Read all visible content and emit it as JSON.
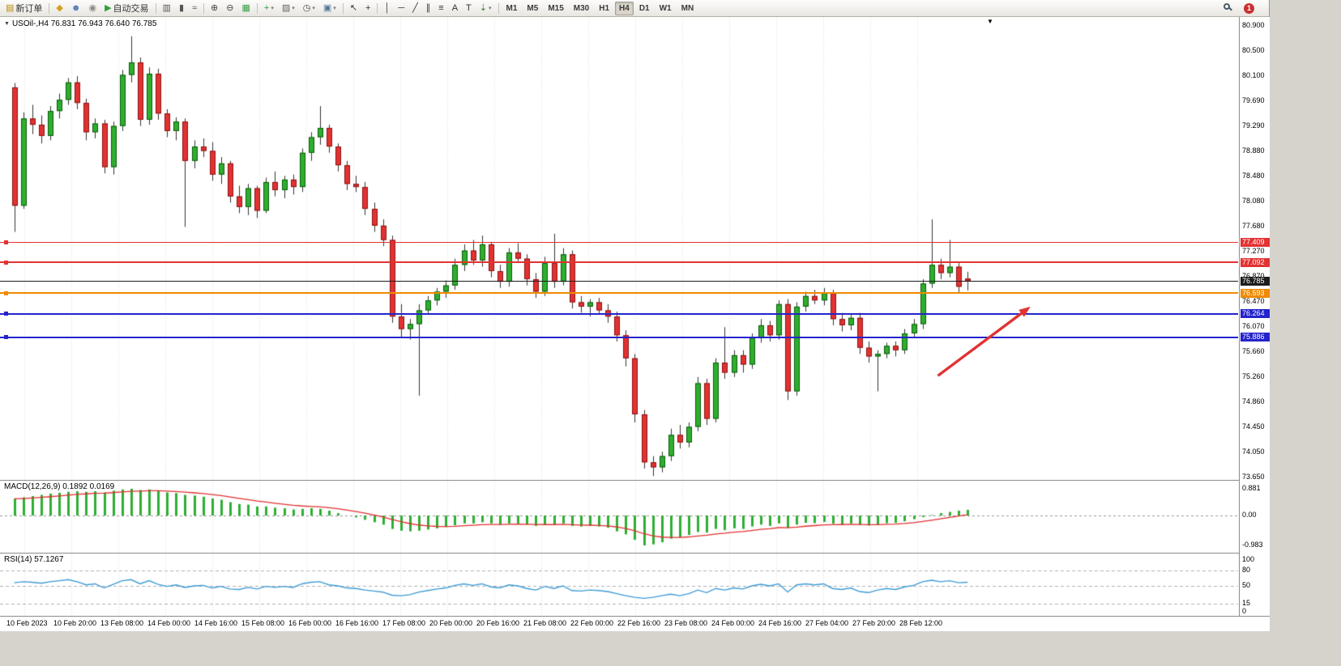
{
  "icons": {
    "dropdown": "▾",
    "collapse": "▼",
    "shift": "▼"
  },
  "toolbar": {
    "groups": [
      [
        {
          "name": "new-order-button",
          "glyph": "▤",
          "glyph_color": "#b8860b",
          "label": "新订单"
        }
      ],
      [
        {
          "name": "indicators-button",
          "glyph": "◆",
          "glyph_color": "#d4a017"
        },
        {
          "name": "accounts-button",
          "glyph": "☻",
          "glyph_color": "#4a7ab5"
        },
        {
          "name": "sound-button",
          "glyph": "◉",
          "glyph_color": "#888888"
        },
        {
          "name": "autotrading-button",
          "glyph": "▶",
          "glyph_color": "#2e9e3f",
          "label": "自动交易"
        }
      ],
      [
        {
          "name": "bar-chart-button",
          "glyph": "▥",
          "glyph_color": "#555555"
        },
        {
          "name": "candlestick-chart-button",
          "glyph": "▮",
          "glyph_color": "#555555"
        },
        {
          "name": "line-chart-button",
          "glyph": "≈",
          "glyph_color": "#555555"
        }
      ],
      [
        {
          "name": "zoom-in-button",
          "glyph": "⊕",
          "glyph_color": "#444444"
        },
        {
          "name": "zoom-out-button",
          "glyph": "⊖",
          "glyph_color": "#444444"
        },
        {
          "name": "tile-windows-button",
          "glyph": "▦",
          "glyph_color": "#3a9e4a"
        }
      ],
      [
        {
          "name": "new-chart-button",
          "glyph": "+",
          "glyph_color": "#2e9e3f",
          "dropdown": true
        },
        {
          "name": "profiles-button",
          "glyph": "▨",
          "glyph_color": "#666666",
          "dropdown": true
        },
        {
          "name": "period-menu-button",
          "glyph": "◷",
          "glyph_color": "#444444",
          "dropdown": true
        },
        {
          "name": "snapshot-button",
          "glyph": "▣",
          "glyph_color": "#557799",
          "dropdown": true
        }
      ],
      [
        {
          "name": "cursor-button",
          "glyph": "↖",
          "glyph_color": "#333333"
        },
        {
          "name": "crosshair-button",
          "glyph": "+",
          "glyph_color": "#333333"
        }
      ],
      [
        {
          "name": "vertical-line-button",
          "glyph": "│",
          "glyph_color": "#333333"
        },
        {
          "name": "horizontal-line-button",
          "glyph": "─",
          "glyph_color": "#333333"
        },
        {
          "name": "trendline-button",
          "glyph": "╱",
          "glyph_color": "#333333"
        },
        {
          "name": "channel-button",
          "glyph": "∥",
          "glyph_color": "#333333"
        },
        {
          "name": "fibonacci-button",
          "glyph": "≡",
          "glyph_color": "#333333"
        },
        {
          "name": "text-button",
          "glyph": "A",
          "glyph_color": "#333333"
        },
        {
          "name": "label-button",
          "glyph": "T",
          "glyph_color": "#333333"
        },
        {
          "name": "arrows-button",
          "glyph": "⇣",
          "glyph_color": "#2e7d32",
          "dropdown": true
        }
      ]
    ],
    "timeframes": [
      "M1",
      "M5",
      "M15",
      "M30",
      "H1",
      "H4",
      "D1",
      "W1",
      "MN"
    ],
    "active_timeframe": "H4",
    "badge": "1"
  },
  "chart": {
    "title": "USOil-,H4 76.831 76.943 76.640 76.785",
    "symbol": "USOil-",
    "period": "H4",
    "ohlc_current": {
      "open": 76.831,
      "high": 76.943,
      "low": 76.64,
      "close": 76.785
    }
  },
  "price_axis": {
    "ticks": [
      "80.900",
      "80.500",
      "80.100",
      "79.690",
      "79.290",
      "78.880",
      "78.480",
      "78.080",
      "77.680",
      "77.270",
      "76.870",
      "76.470",
      "76.070",
      "75.660",
      "75.260",
      "74.860",
      "74.450",
      "74.050",
      "73.650"
    ],
    "markers": [
      {
        "label": "77.409",
        "value": 77.409,
        "color": "#e23232",
        "line_width": 1.3,
        "handle": true
      },
      {
        "label": "77.092",
        "value": 77.092,
        "color": "#e23232",
        "line_width": 1.3,
        "handle": true
      },
      {
        "label": "76.785",
        "value": 76.785,
        "color": "#1c1c1c",
        "line_width": 1,
        "handle": false
      },
      {
        "label": "76.593",
        "value": 76.593,
        "color": "#f08a00",
        "line_width": 2,
        "handle": true
      },
      {
        "label": "76.264",
        "value": 76.264,
        "color": "#2424cc",
        "line_width": 2,
        "handle": true
      },
      {
        "label": "75.886",
        "value": 75.886,
        "color": "#2424cc",
        "line_width": 2,
        "handle": true
      }
    ]
  },
  "chart_data": {
    "type": "candlestick",
    "symbol": "USOil-",
    "timeframe": "H4",
    "ylim": [
      73.45,
      81.05
    ],
    "time_labels": [
      "10 Feb 2023",
      "10 Feb 20:00",
      "13 Feb 08:00",
      "14 Feb 00:00",
      "14 Feb 16:00",
      "15 Feb 08:00",
      "16 Feb 00:00",
      "16 Feb 16:00",
      "17 Feb 08:00",
      "20 Feb 00:00",
      "20 Feb 16:00",
      "21 Feb 08:00",
      "22 Feb 00:00",
      "22 Feb 16:00",
      "23 Feb 08:00",
      "24 Feb 00:00",
      "24 Feb 16:00",
      "27 Feb 04:00",
      "27 Feb 20:00",
      "28 Feb 12:00"
    ],
    "candles": [
      [
        79.9,
        79.97,
        77.58,
        78.0
      ],
      [
        78.0,
        79.5,
        77.95,
        79.4
      ],
      [
        79.4,
        79.62,
        79.15,
        79.3
      ],
      [
        79.3,
        79.45,
        79.0,
        79.12
      ],
      [
        79.12,
        79.6,
        79.05,
        79.52
      ],
      [
        79.52,
        79.8,
        79.4,
        79.7
      ],
      [
        79.7,
        80.05,
        79.62,
        79.98
      ],
      [
        79.98,
        80.08,
        79.55,
        79.65
      ],
      [
        79.65,
        79.72,
        79.05,
        79.18
      ],
      [
        79.18,
        79.4,
        79.08,
        79.32
      ],
      [
        79.32,
        79.38,
        78.52,
        78.62
      ],
      [
        78.62,
        79.35,
        78.5,
        79.28
      ],
      [
        79.28,
        80.18,
        79.2,
        80.1
      ],
      [
        80.1,
        80.72,
        79.98,
        80.3
      ],
      [
        80.3,
        80.38,
        79.28,
        79.38
      ],
      [
        79.38,
        80.22,
        79.3,
        80.12
      ],
      [
        80.12,
        80.2,
        79.38,
        79.48
      ],
      [
        79.48,
        79.55,
        79.1,
        79.2
      ],
      [
        79.2,
        79.42,
        79.05,
        79.35
      ],
      [
        79.35,
        79.4,
        77.66,
        78.72
      ],
      [
        78.72,
        79.05,
        78.6,
        78.95
      ],
      [
        78.95,
        79.08,
        78.78,
        78.88
      ],
      [
        78.88,
        79.02,
        78.4,
        78.5
      ],
      [
        78.5,
        78.78,
        78.35,
        78.68
      ],
      [
        78.68,
        78.72,
        78.05,
        78.15
      ],
      [
        78.15,
        78.32,
        77.88,
        77.98
      ],
      [
        77.98,
        78.35,
        77.85,
        78.28
      ],
      [
        78.28,
        78.32,
        77.8,
        77.92
      ],
      [
        77.92,
        78.45,
        77.88,
        78.38
      ],
      [
        78.38,
        78.55,
        78.15,
        78.25
      ],
      [
        78.25,
        78.48,
        78.12,
        78.42
      ],
      [
        78.42,
        78.5,
        78.18,
        78.3
      ],
      [
        78.3,
        78.92,
        78.22,
        78.85
      ],
      [
        78.85,
        79.18,
        78.72,
        79.1
      ],
      [
        79.1,
        79.6,
        78.98,
        79.25
      ],
      [
        79.25,
        79.3,
        78.85,
        78.95
      ],
      [
        78.95,
        79.0,
        78.55,
        78.65
      ],
      [
        78.65,
        78.72,
        78.25,
        78.35
      ],
      [
        78.35,
        78.48,
        78.22,
        78.3
      ],
      [
        78.3,
        78.38,
        77.85,
        77.95
      ],
      [
        77.95,
        78.05,
        77.58,
        77.68
      ],
      [
        77.68,
        77.78,
        77.35,
        77.45
      ],
      [
        77.45,
        77.52,
        76.12,
        76.22
      ],
      [
        76.22,
        76.42,
        75.88,
        76.02
      ],
      [
        76.02,
        76.18,
        75.85,
        76.1
      ],
      [
        76.1,
        76.42,
        74.95,
        76.32
      ],
      [
        76.32,
        76.55,
        76.25,
        76.48
      ],
      [
        76.48,
        76.68,
        76.4,
        76.62
      ],
      [
        76.62,
        76.8,
        76.52,
        76.72
      ],
      [
        76.72,
        77.15,
        76.65,
        77.05
      ],
      [
        77.05,
        77.38,
        76.95,
        77.28
      ],
      [
        77.28,
        77.45,
        77.05,
        77.12
      ],
      [
        77.12,
        77.52,
        77.02,
        77.38
      ],
      [
        77.38,
        77.42,
        76.85,
        76.95
      ],
      [
        76.95,
        77.05,
        76.68,
        76.78
      ],
      [
        76.78,
        77.32,
        76.7,
        77.25
      ],
      [
        77.25,
        77.4,
        77.08,
        77.15
      ],
      [
        77.15,
        77.22,
        76.72,
        76.82
      ],
      [
        76.82,
        76.92,
        76.52,
        76.62
      ],
      [
        76.62,
        77.18,
        76.55,
        77.08
      ],
      [
        77.08,
        77.55,
        76.68,
        76.78
      ],
      [
        76.78,
        77.32,
        76.72,
        77.22
      ],
      [
        77.22,
        77.28,
        76.35,
        76.45
      ],
      [
        76.45,
        76.55,
        76.28,
        76.38
      ],
      [
        76.38,
        76.5,
        76.22,
        76.45
      ],
      [
        76.45,
        76.52,
        76.25,
        76.32
      ],
      [
        76.32,
        76.42,
        76.12,
        76.22
      ],
      [
        76.22,
        76.3,
        75.82,
        75.92
      ],
      [
        75.92,
        76.0,
        75.42,
        75.55
      ],
      [
        75.55,
        75.62,
        74.52,
        74.65
      ],
      [
        74.65,
        74.72,
        73.78,
        73.88
      ],
      [
        73.88,
        73.98,
        73.66,
        73.8
      ],
      [
        73.8,
        74.05,
        73.72,
        73.98
      ],
      [
        73.98,
        74.42,
        73.9,
        74.32
      ],
      [
        74.32,
        74.48,
        74.1,
        74.2
      ],
      [
        74.2,
        74.52,
        74.12,
        74.45
      ],
      [
        74.45,
        75.25,
        74.38,
        75.15
      ],
      [
        75.15,
        75.22,
        74.48,
        74.58
      ],
      [
        74.58,
        75.55,
        74.52,
        75.48
      ],
      [
        75.48,
        76.05,
        75.22,
        75.32
      ],
      [
        75.32,
        75.68,
        75.25,
        75.6
      ],
      [
        75.6,
        75.68,
        75.32,
        75.45
      ],
      [
        75.45,
        75.95,
        75.38,
        75.88
      ],
      [
        75.88,
        76.18,
        75.8,
        76.08
      ],
      [
        76.08,
        76.15,
        75.82,
        75.92
      ],
      [
        75.92,
        76.48,
        75.85,
        76.42
      ],
      [
        76.42,
        76.5,
        74.88,
        75.02
      ],
      [
        75.02,
        76.45,
        74.95,
        76.38
      ],
      [
        76.38,
        76.62,
        76.3,
        76.55
      ],
      [
        76.55,
        76.65,
        76.42,
        76.48
      ],
      [
        76.48,
        76.68,
        76.4,
        76.6
      ],
      [
        76.6,
        76.65,
        76.08,
        76.18
      ],
      [
        76.18,
        76.28,
        75.98,
        76.08
      ],
      [
        76.08,
        76.25,
        76.0,
        76.2
      ],
      [
        76.2,
        76.28,
        75.62,
        75.72
      ],
      [
        75.72,
        75.82,
        75.48,
        75.58
      ],
      [
        75.58,
        75.68,
        75.02,
        75.62
      ],
      [
        75.62,
        75.8,
        75.55,
        75.75
      ],
      [
        75.75,
        75.82,
        75.58,
        75.68
      ],
      [
        75.68,
        76.02,
        75.62,
        75.95
      ],
      [
        75.95,
        76.18,
        75.88,
        76.1
      ],
      [
        76.1,
        76.82,
        76.02,
        76.75
      ],
      [
        76.75,
        77.78,
        76.68,
        77.05
      ],
      [
        77.05,
        77.15,
        76.82,
        76.92
      ],
      [
        76.92,
        77.45,
        76.85,
        77.02
      ],
      [
        77.02,
        77.08,
        76.6,
        76.7
      ],
      [
        76.83,
        76.94,
        76.64,
        76.79
      ]
    ],
    "arrow": {
      "from": {
        "t": 102.7,
        "price": 75.27
      },
      "to": {
        "t": 113.0,
        "price": 76.38
      },
      "color": "#e23232"
    },
    "macd": {
      "name": "MACD(12,26,9)",
      "values_text": "0.1892 0.0169",
      "scale": {
        "max": 0.881,
        "min": -0.983
      },
      "scale_labels": [
        "0.881",
        "0.00",
        "-0.983"
      ],
      "signal_period": 9,
      "values": [
        0.55,
        0.6,
        0.64,
        0.68,
        0.72,
        0.75,
        0.78,
        0.8,
        0.78,
        0.8,
        0.76,
        0.82,
        0.86,
        0.881,
        0.84,
        0.86,
        0.82,
        0.76,
        0.74,
        0.68,
        0.66,
        0.62,
        0.56,
        0.52,
        0.44,
        0.38,
        0.36,
        0.3,
        0.3,
        0.26,
        0.24,
        0.2,
        0.22,
        0.24,
        0.22,
        0.16,
        0.08,
        0.0,
        -0.06,
        -0.14,
        -0.22,
        -0.3,
        -0.44,
        -0.5,
        -0.52,
        -0.5,
        -0.46,
        -0.42,
        -0.38,
        -0.32,
        -0.26,
        -0.26,
        -0.22,
        -0.26,
        -0.3,
        -0.26,
        -0.26,
        -0.3,
        -0.34,
        -0.3,
        -0.3,
        -0.26,
        -0.34,
        -0.36,
        -0.34,
        -0.36,
        -0.4,
        -0.52,
        -0.62,
        -0.8,
        -0.983,
        -0.95,
        -0.88,
        -0.76,
        -0.72,
        -0.64,
        -0.54,
        -0.56,
        -0.44,
        -0.48,
        -0.42,
        -0.44,
        -0.36,
        -0.3,
        -0.34,
        -0.26,
        -0.4,
        -0.3,
        -0.24,
        -0.25,
        -0.21,
        -0.27,
        -0.29,
        -0.26,
        -0.31,
        -0.33,
        -0.29,
        -0.25,
        -0.24,
        -0.19,
        -0.12,
        -0.05,
        0.02,
        0.08,
        0.12,
        0.16,
        0.1892
      ]
    },
    "rsi": {
      "name": "RSI(14)",
      "value_text": "57.1267",
      "levels": [
        80,
        50,
        15
      ],
      "scale_labels": [
        "100",
        "80",
        "50",
        "15",
        "0"
      ],
      "values": [
        56,
        58,
        57,
        55,
        58,
        60,
        62,
        58,
        52,
        54,
        46,
        53,
        60,
        62,
        54,
        60,
        53,
        49,
        52,
        47,
        50,
        51,
        46,
        49,
        44,
        43,
        47,
        44,
        49,
        47,
        49,
        47,
        54,
        57,
        58,
        52,
        50,
        46,
        45,
        42,
        40,
        38,
        32,
        31,
        33,
        38,
        41,
        44,
        46,
        51,
        54,
        51,
        54,
        48,
        46,
        52,
        50,
        45,
        42,
        49,
        45,
        50,
        41,
        40,
        42,
        41,
        39,
        35,
        31,
        28,
        26,
        28,
        31,
        34,
        31,
        35,
        42,
        37,
        45,
        42,
        46,
        44,
        50,
        53,
        50,
        54,
        38,
        52,
        54,
        52,
        54,
        45,
        43,
        46,
        39,
        37,
        42,
        45,
        43,
        48,
        51,
        58,
        61,
        58,
        60,
        56,
        57.13
      ]
    }
  }
}
